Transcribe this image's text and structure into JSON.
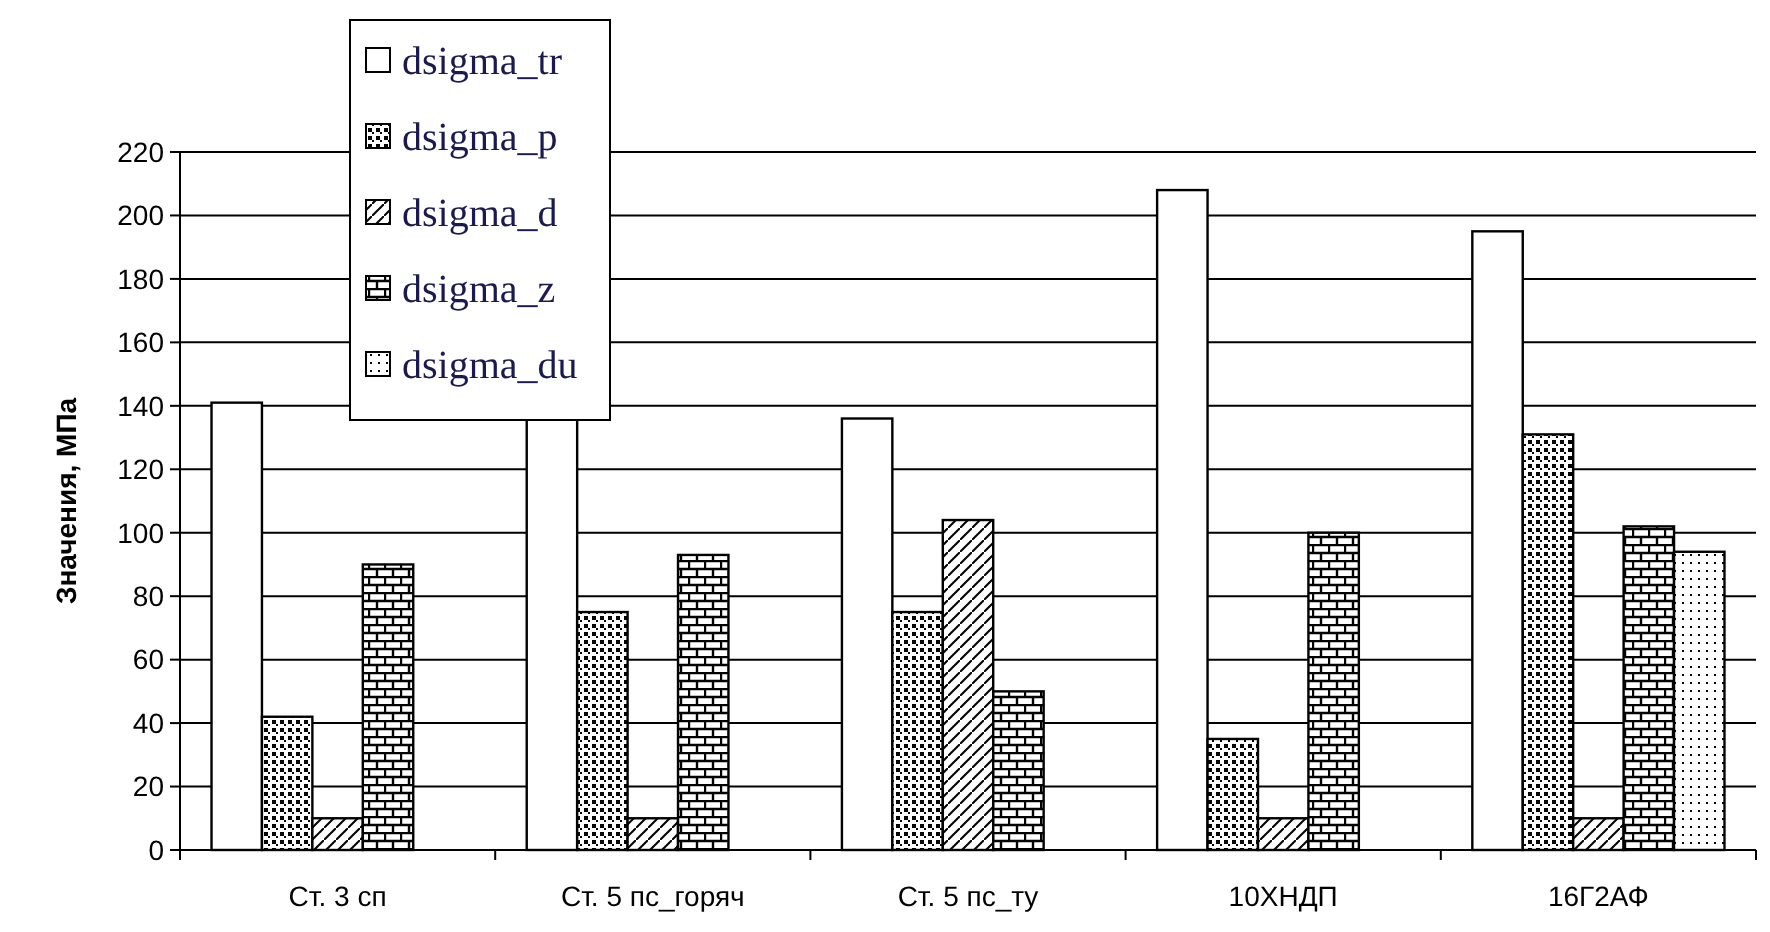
{
  "chart_data": {
    "type": "bar",
    "ylabel": "Значения, МПа",
    "categories": [
      "Ст. 3 сп",
      "Ст. 5 пс_горяч",
      "Ст. 5 пс_ту",
      "10ХНДП",
      "16Г2АФ"
    ],
    "series": [
      {
        "name": "dsigma_tr",
        "color": "#000000",
        "values": [
          141,
          136,
          136,
          208,
          195
        ]
      },
      {
        "name": "dsigma_p",
        "color": "#000000",
        "values": [
          42,
          75,
          75,
          35,
          131
        ]
      },
      {
        "name": "dsigma_d",
        "color": "#000000",
        "values": [
          10,
          10,
          104,
          10,
          10
        ]
      },
      {
        "name": "dsigma_z",
        "color": "#000000",
        "values": [
          90,
          93,
          50,
          100,
          102
        ]
      },
      {
        "name": "dsigma_du",
        "color": "#000000",
        "values": [
          null,
          null,
          null,
          null,
          94
        ]
      }
    ],
    "ylim": [
      0,
      220
    ],
    "yticks": [
      0,
      20,
      40,
      60,
      80,
      100,
      120,
      140,
      160,
      180,
      200,
      220
    ],
    "grid": "y",
    "legend": "top left"
  }
}
